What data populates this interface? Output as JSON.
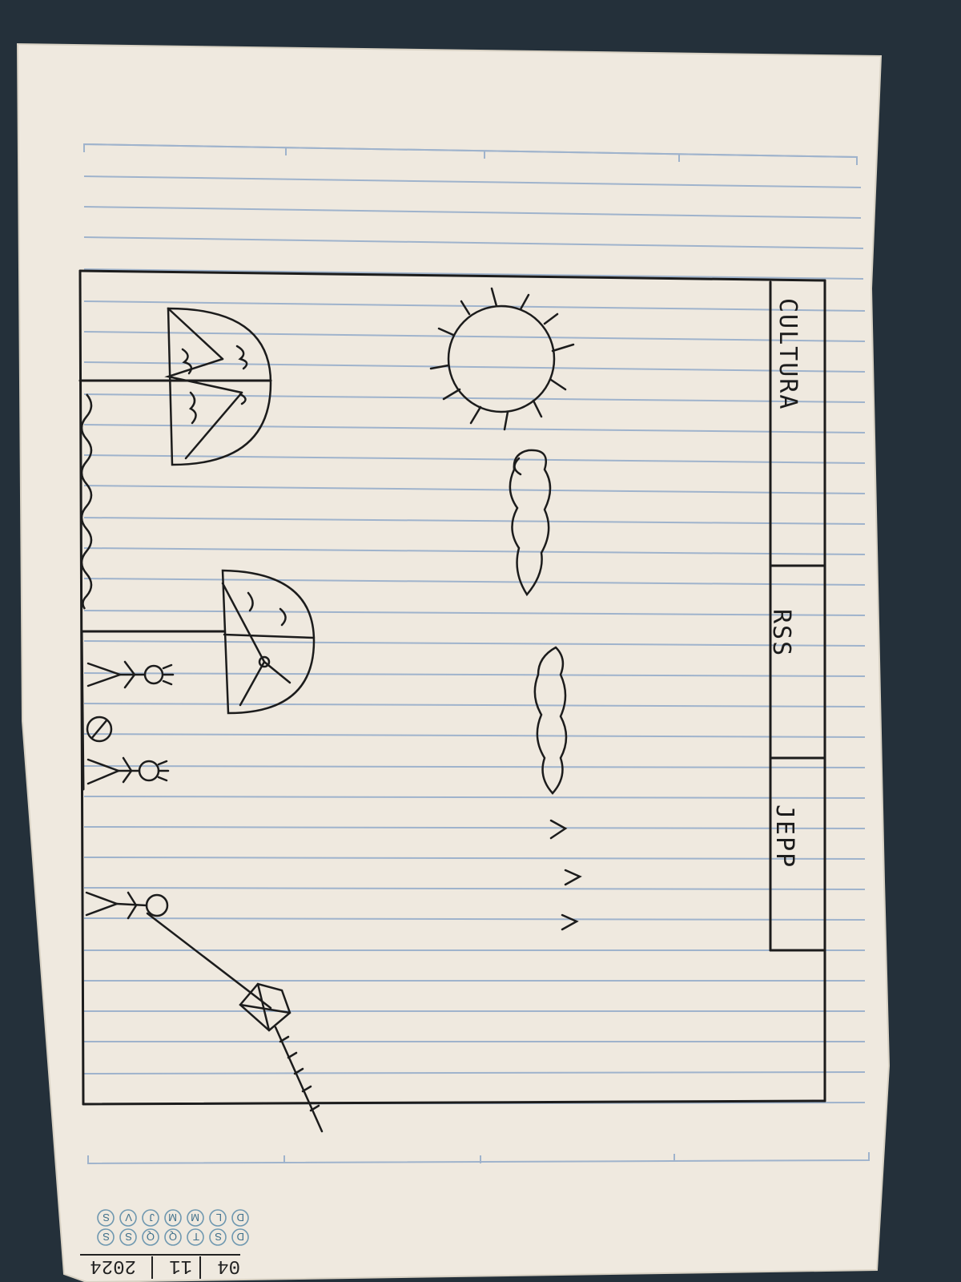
{
  "photo": {
    "background_color": "#24303a",
    "paper_color": "#efe9df",
    "rule_color": "#9fb3cc",
    "ink_color": "#1c1c1c"
  },
  "sketch": {
    "nav_tabs": [
      {
        "label": "CULTURA"
      },
      {
        "label": "RSS"
      },
      {
        "label": "JEPP"
      }
    ],
    "arrows": "v v v"
  },
  "footer": {
    "date_day": "04",
    "date_month": "11",
    "date_year": "2024",
    "weekdays_row1": [
      "D",
      "S",
      "T",
      "Q",
      "Q",
      "S",
      "S"
    ],
    "weekdays_row2": [
      "D",
      "L",
      "M",
      "M",
      "J",
      "V",
      "S"
    ]
  }
}
